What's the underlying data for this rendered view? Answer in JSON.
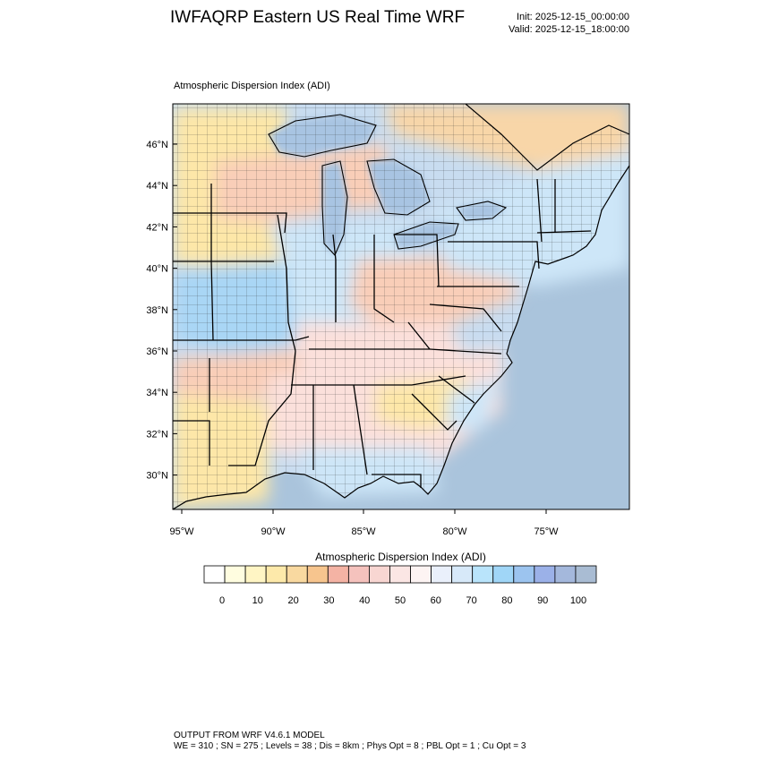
{
  "header": {
    "title": "IWFAQRP Eastern US Real Time WRF",
    "init": "Init: 2025-12-15_00:00:00",
    "valid": "Valid: 2025-12-15_18:00:00"
  },
  "plot": {
    "label": "Atmospheric Dispersion Index   (ADI)",
    "lat_ticks": [
      "46°N",
      "44°N",
      "42°N",
      "40°N",
      "38°N",
      "36°N",
      "34°N",
      "32°N",
      "30°N"
    ],
    "lon_ticks": [
      "95°W",
      "90°W",
      "85°W",
      "80°W",
      "75°W"
    ]
  },
  "colorbar": {
    "title": "Atmospheric Dispersion Index  (ADI)",
    "labels": [
      "0",
      "10",
      "20",
      "30",
      "40",
      "50",
      "60",
      "70",
      "80",
      "90",
      "100"
    ],
    "colors": [
      "#ffffff",
      "#fffde0",
      "#fff5c4",
      "#fde9aa",
      "#f9d9a0",
      "#f7c58e",
      "#f4b3a4",
      "#f5c2bd",
      "#f8d6d2",
      "#fbe6e4",
      "#fdf4f3",
      "#eaf0fb",
      "#d7e9f9",
      "#b9e4fb",
      "#a0d6f7",
      "#9cc4ef",
      "#9bb1e8",
      "#a4b8dc",
      "#a9bcd3"
    ]
  },
  "map_colors": {
    "ocean": "#aac4dc",
    "land_base": "#c8dcf0",
    "lake": "#a8c4e2",
    "warm_peach": "#f9ceb8",
    "warm_yellow": "#fde7a8",
    "pale_pink": "#fbe0db",
    "light_blue": "#cde6f8",
    "sky_blue": "#a9d6f5",
    "canada_orange": "#f8d6a8"
  },
  "footer": {
    "line1": "OUTPUT FROM WRF V4.6.1 MODEL",
    "line2": "WE = 310 ; SN = 275 ; Levels = 38 ; Dis = 8km ; Phys Opt = 8 ; PBL Opt = 1 ; Cu Opt = 3"
  }
}
